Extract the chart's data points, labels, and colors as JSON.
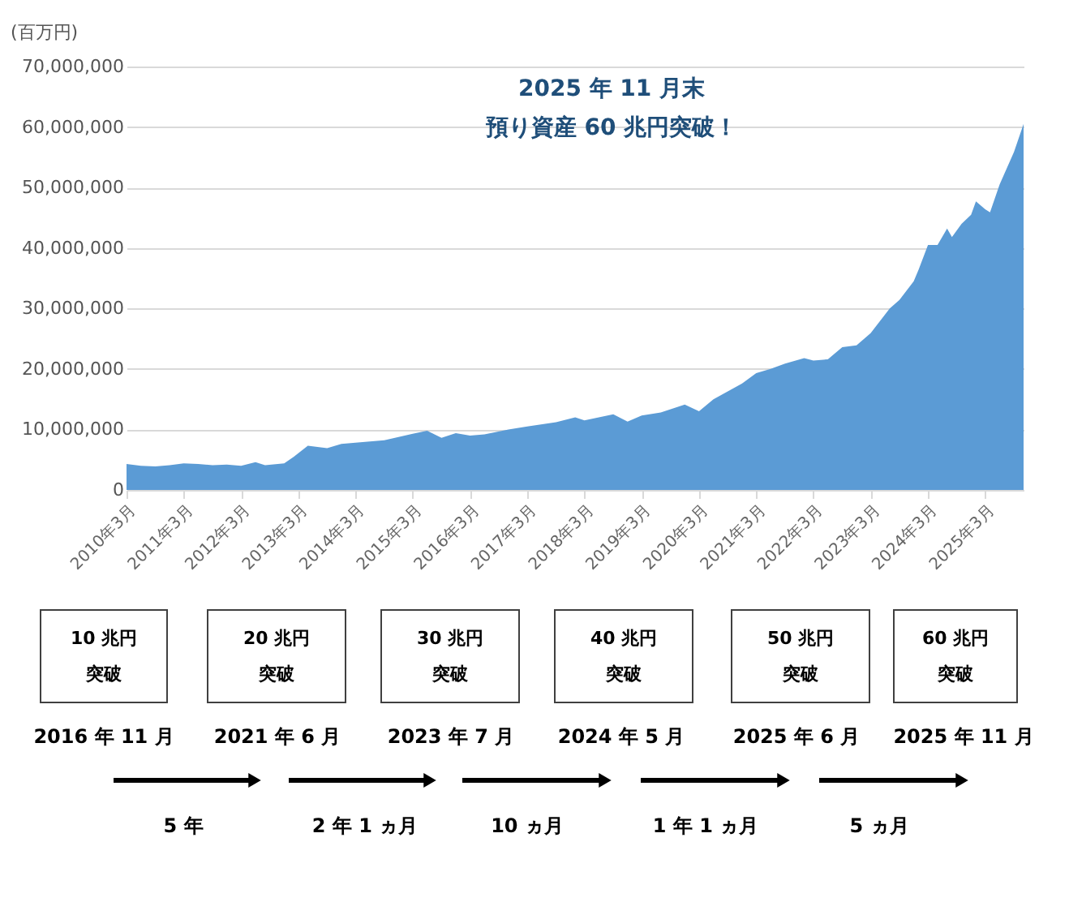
{
  "chart_data": {
    "type": "area",
    "ylabel": "(百万円)",
    "x": [
      "2010-03",
      "2010-06",
      "2010-09",
      "2010-12",
      "2011-03",
      "2011-06",
      "2011-09",
      "2011-12",
      "2012-03",
      "2012-06",
      "2012-08",
      "2012-12",
      "2013-02",
      "2013-05",
      "2013-09",
      "2013-12",
      "2014-03",
      "2014-09",
      "2015-03",
      "2015-06",
      "2015-09",
      "2015-12",
      "2016-03",
      "2016-06",
      "2016-11",
      "2017-03",
      "2017-09",
      "2018-01",
      "2018-03",
      "2018-09",
      "2018-12",
      "2019-03",
      "2019-07",
      "2019-12",
      "2020-03",
      "2020-06",
      "2020-12",
      "2021-03",
      "2021-06",
      "2021-09",
      "2022-01",
      "2022-03",
      "2022-06",
      "2022-09",
      "2022-12",
      "2023-03",
      "2023-07",
      "2023-09",
      "2023-12",
      "2024-01",
      "2024-03",
      "2024-05",
      "2024-07",
      "2024-08",
      "2024-10",
      "2024-12",
      "2025-01",
      "2025-03",
      "2025-04",
      "2025-06",
      "2025-09",
      "2025-11"
    ],
    "series": [
      {
        "color": "#5b9bd5",
        "values": [
          4300000,
          4000000,
          3900000,
          4100000,
          4400000,
          4300000,
          4100000,
          4200000,
          4000000,
          4600000,
          4100000,
          4400000,
          5500000,
          7300000,
          6900000,
          7600000,
          7800000,
          8200000,
          9300000,
          9800000,
          8600000,
          9400000,
          9000000,
          9200000,
          10000000,
          10500000,
          11200000,
          12000000,
          11500000,
          12500000,
          11300000,
          12300000,
          12800000,
          14100000,
          13000000,
          15000000,
          17600000,
          19300000,
          20000000,
          20900000,
          21800000,
          21400000,
          21600000,
          23600000,
          23900000,
          25900000,
          30000000,
          31400000,
          34500000,
          36400000,
          40500000,
          40500000,
          43200000,
          41800000,
          44000000,
          45500000,
          47700000,
          46400000,
          45900000,
          50500000,
          55900000,
          60500000
        ]
      }
    ],
    "xlim": [
      "2010-03",
      "2025-11"
    ],
    "xticks": [
      {
        "value": "2010-03",
        "label": "2010年3月"
      },
      {
        "value": "2011-03",
        "label": "2011年3月"
      },
      {
        "value": "2012-03",
        "label": "2012年3月"
      },
      {
        "value": "2013-03",
        "label": "2013年3月"
      },
      {
        "value": "2014-03",
        "label": "2014年3月"
      },
      {
        "value": "2015-03",
        "label": "2015年3月"
      },
      {
        "value": "2016-03",
        "label": "2016年3月"
      },
      {
        "value": "2017-03",
        "label": "2017年3月"
      },
      {
        "value": "2018-03",
        "label": "2018年3月"
      },
      {
        "value": "2019-03",
        "label": "2019年3月"
      },
      {
        "value": "2020-03",
        "label": "2020年3月"
      },
      {
        "value": "2021-03",
        "label": "2021年3月"
      },
      {
        "value": "2022-03",
        "label": "2022年3月"
      },
      {
        "value": "2023-03",
        "label": "2023年3月"
      },
      {
        "value": "2024-03",
        "label": "2024年3月"
      },
      {
        "value": "2025-03",
        "label": "2025年3月"
      }
    ],
    "ylim": [
      0,
      70000000
    ],
    "yticks": [
      0,
      {
        "value": 10000000,
        "label": "10,000,000"
      },
      {
        "value": 20000000,
        "label": "20,000,000"
      },
      {
        "value": 30000000,
        "label": "30,000,000"
      },
      {
        "value": 40000000,
        "label": "40,000,000"
      },
      {
        "value": 50000000,
        "label": "50,000,000"
      },
      {
        "value": 60000000,
        "label": "60,000,000"
      },
      {
        "value": 70000000,
        "label": "70,000,000"
      }
    ],
    "grid": "y",
    "annotations": [
      "2025 年 11 月末",
      "預り資産 60 兆円突破！",
      "10 兆円",
      "20 兆円",
      "30 兆円",
      "40 兆円",
      "50 兆円",
      "60 兆円",
      "突破",
      "突破",
      "突破",
      "突破",
      "突破",
      "突破",
      "2016 年 11 月",
      "2021 年 6 月",
      "2023 年 7 月",
      "2024 年 5 月",
      "2025 年 6 月",
      "2025 年 11 月",
      "5 年",
      "2 年 1 ヵ月",
      "10 ヵ月",
      "1 年 1 ヵ月",
      "5 ヵ月"
    ]
  }
}
